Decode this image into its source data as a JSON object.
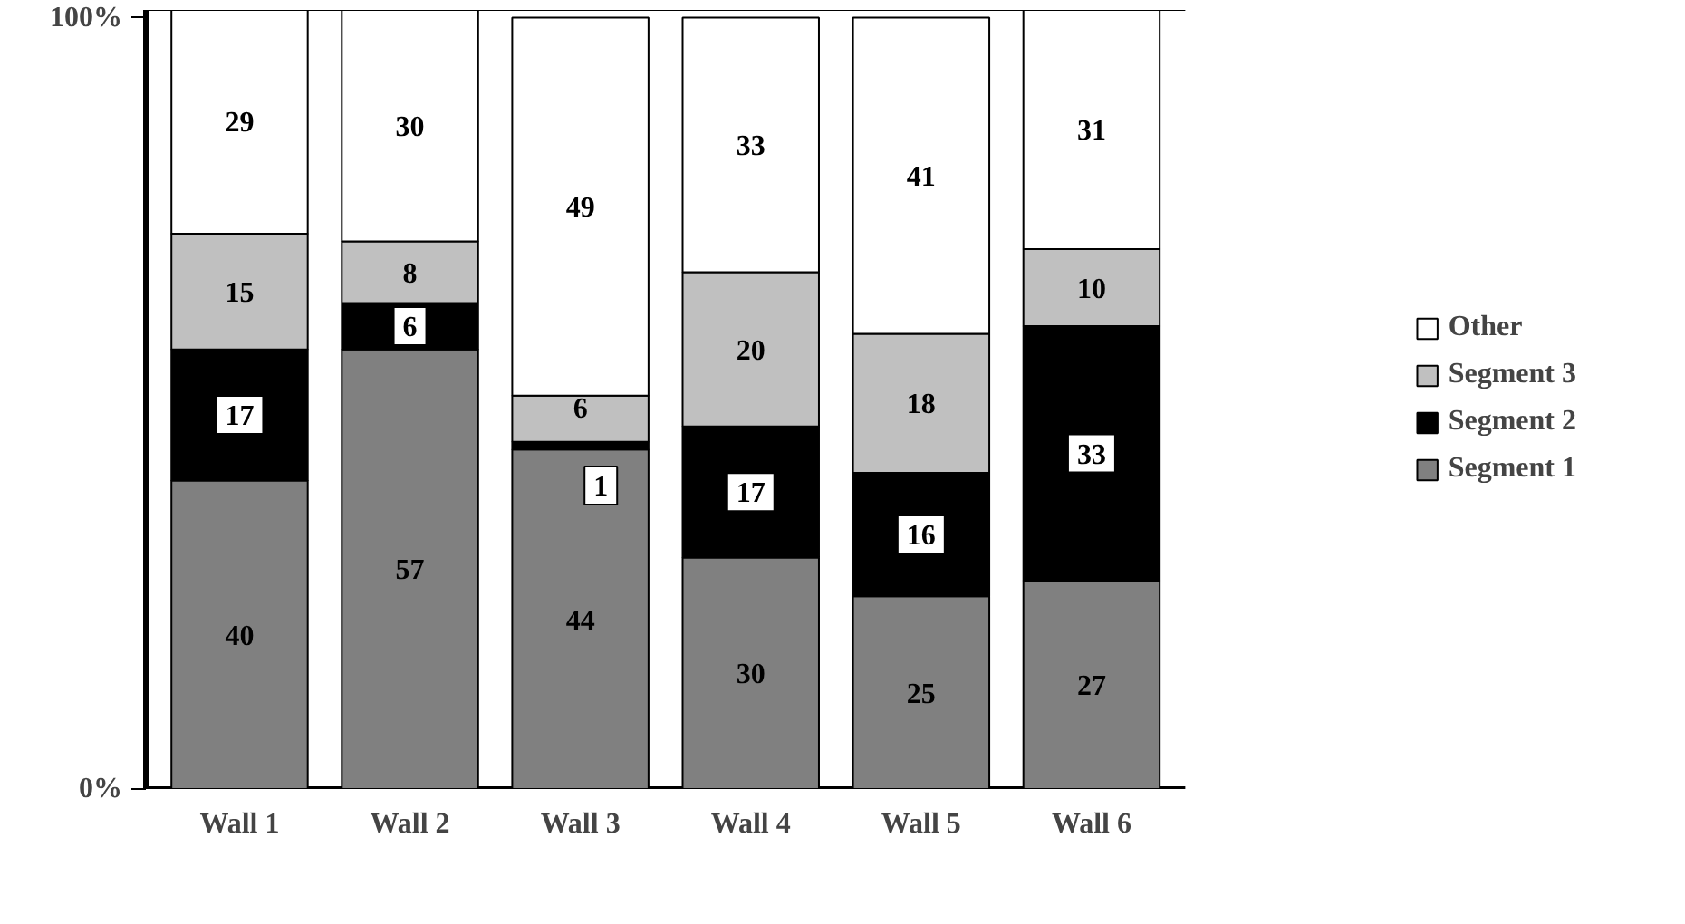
{
  "chart_data": {
    "type": "bar",
    "stacked": true,
    "categories": [
      "Wall 1",
      "Wall 2",
      "Wall 3",
      "Wall 4",
      "Wall 5",
      "Wall 6"
    ],
    "series": [
      {
        "name": "Segment 1",
        "color": "#808080",
        "values": [
          40,
          57,
          44,
          30,
          25,
          27
        ]
      },
      {
        "name": "Segment 2",
        "color": "#000000",
        "values": [
          17,
          6,
          1,
          17,
          16,
          33
        ]
      },
      {
        "name": "Segment 3",
        "color": "#c0c0c0",
        "values": [
          15,
          8,
          6,
          20,
          18,
          10
        ]
      },
      {
        "name": "Other",
        "color": "#ffffff",
        "values": [
          29,
          30,
          49,
          33,
          41,
          31
        ]
      }
    ],
    "ylim": [
      0,
      101
    ],
    "yticks": [
      {
        "value": 0,
        "label": "0%"
      },
      {
        "value": 100,
        "label": "100%"
      }
    ],
    "data_labels": true,
    "legend": "right",
    "grid": false
  }
}
